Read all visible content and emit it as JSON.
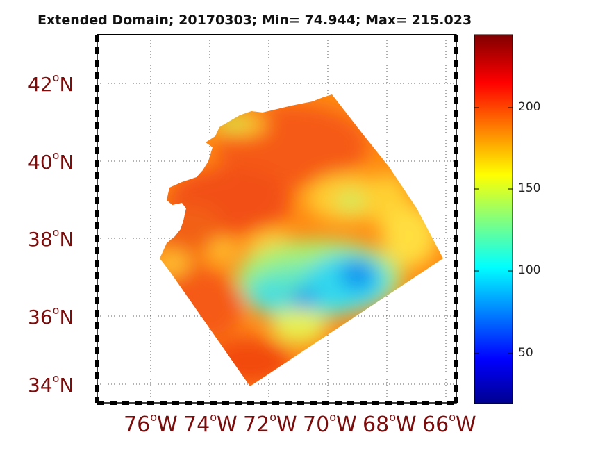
{
  "title": "Extended Domain; 20170303; Min= 74.944; Max= 215.023",
  "lat_labels": [
    {
      "num": "42",
      "sup": "o",
      "suffix": "N"
    },
    {
      "num": "40",
      "sup": "o",
      "suffix": "N"
    },
    {
      "num": "38",
      "sup": "o",
      "suffix": "N"
    },
    {
      "num": "36",
      "sup": "o",
      "suffix": "N"
    },
    {
      "num": "34",
      "sup": "o",
      "suffix": "N"
    }
  ],
  "lon_labels": [
    {
      "num": "76",
      "sup": "o",
      "suffix": "W"
    },
    {
      "num": "74",
      "sup": "o",
      "suffix": "W"
    },
    {
      "num": "72",
      "sup": "o",
      "suffix": "W"
    },
    {
      "num": "70",
      "sup": "o",
      "suffix": "W"
    },
    {
      "num": "68",
      "sup": "o",
      "suffix": "W"
    },
    {
      "num": "66",
      "sup": "o",
      "suffix": "W"
    }
  ],
  "colorbar": {
    "ticks": [
      "200",
      "150",
      "100",
      "50"
    ],
    "colormap": [
      "#00008f",
      "#0000ff",
      "#00ffff",
      "#ffff00",
      "#ff0000",
      "#800000"
    ],
    "range": [
      20,
      243
    ]
  },
  "field_colors": {
    "high": "#f04a10",
    "mid_high": "#ff8c10",
    "mid": "#ffc020",
    "low_mid": "#b8f050",
    "low": "#30d8ee",
    "lowest": "#1098f0"
  }
}
